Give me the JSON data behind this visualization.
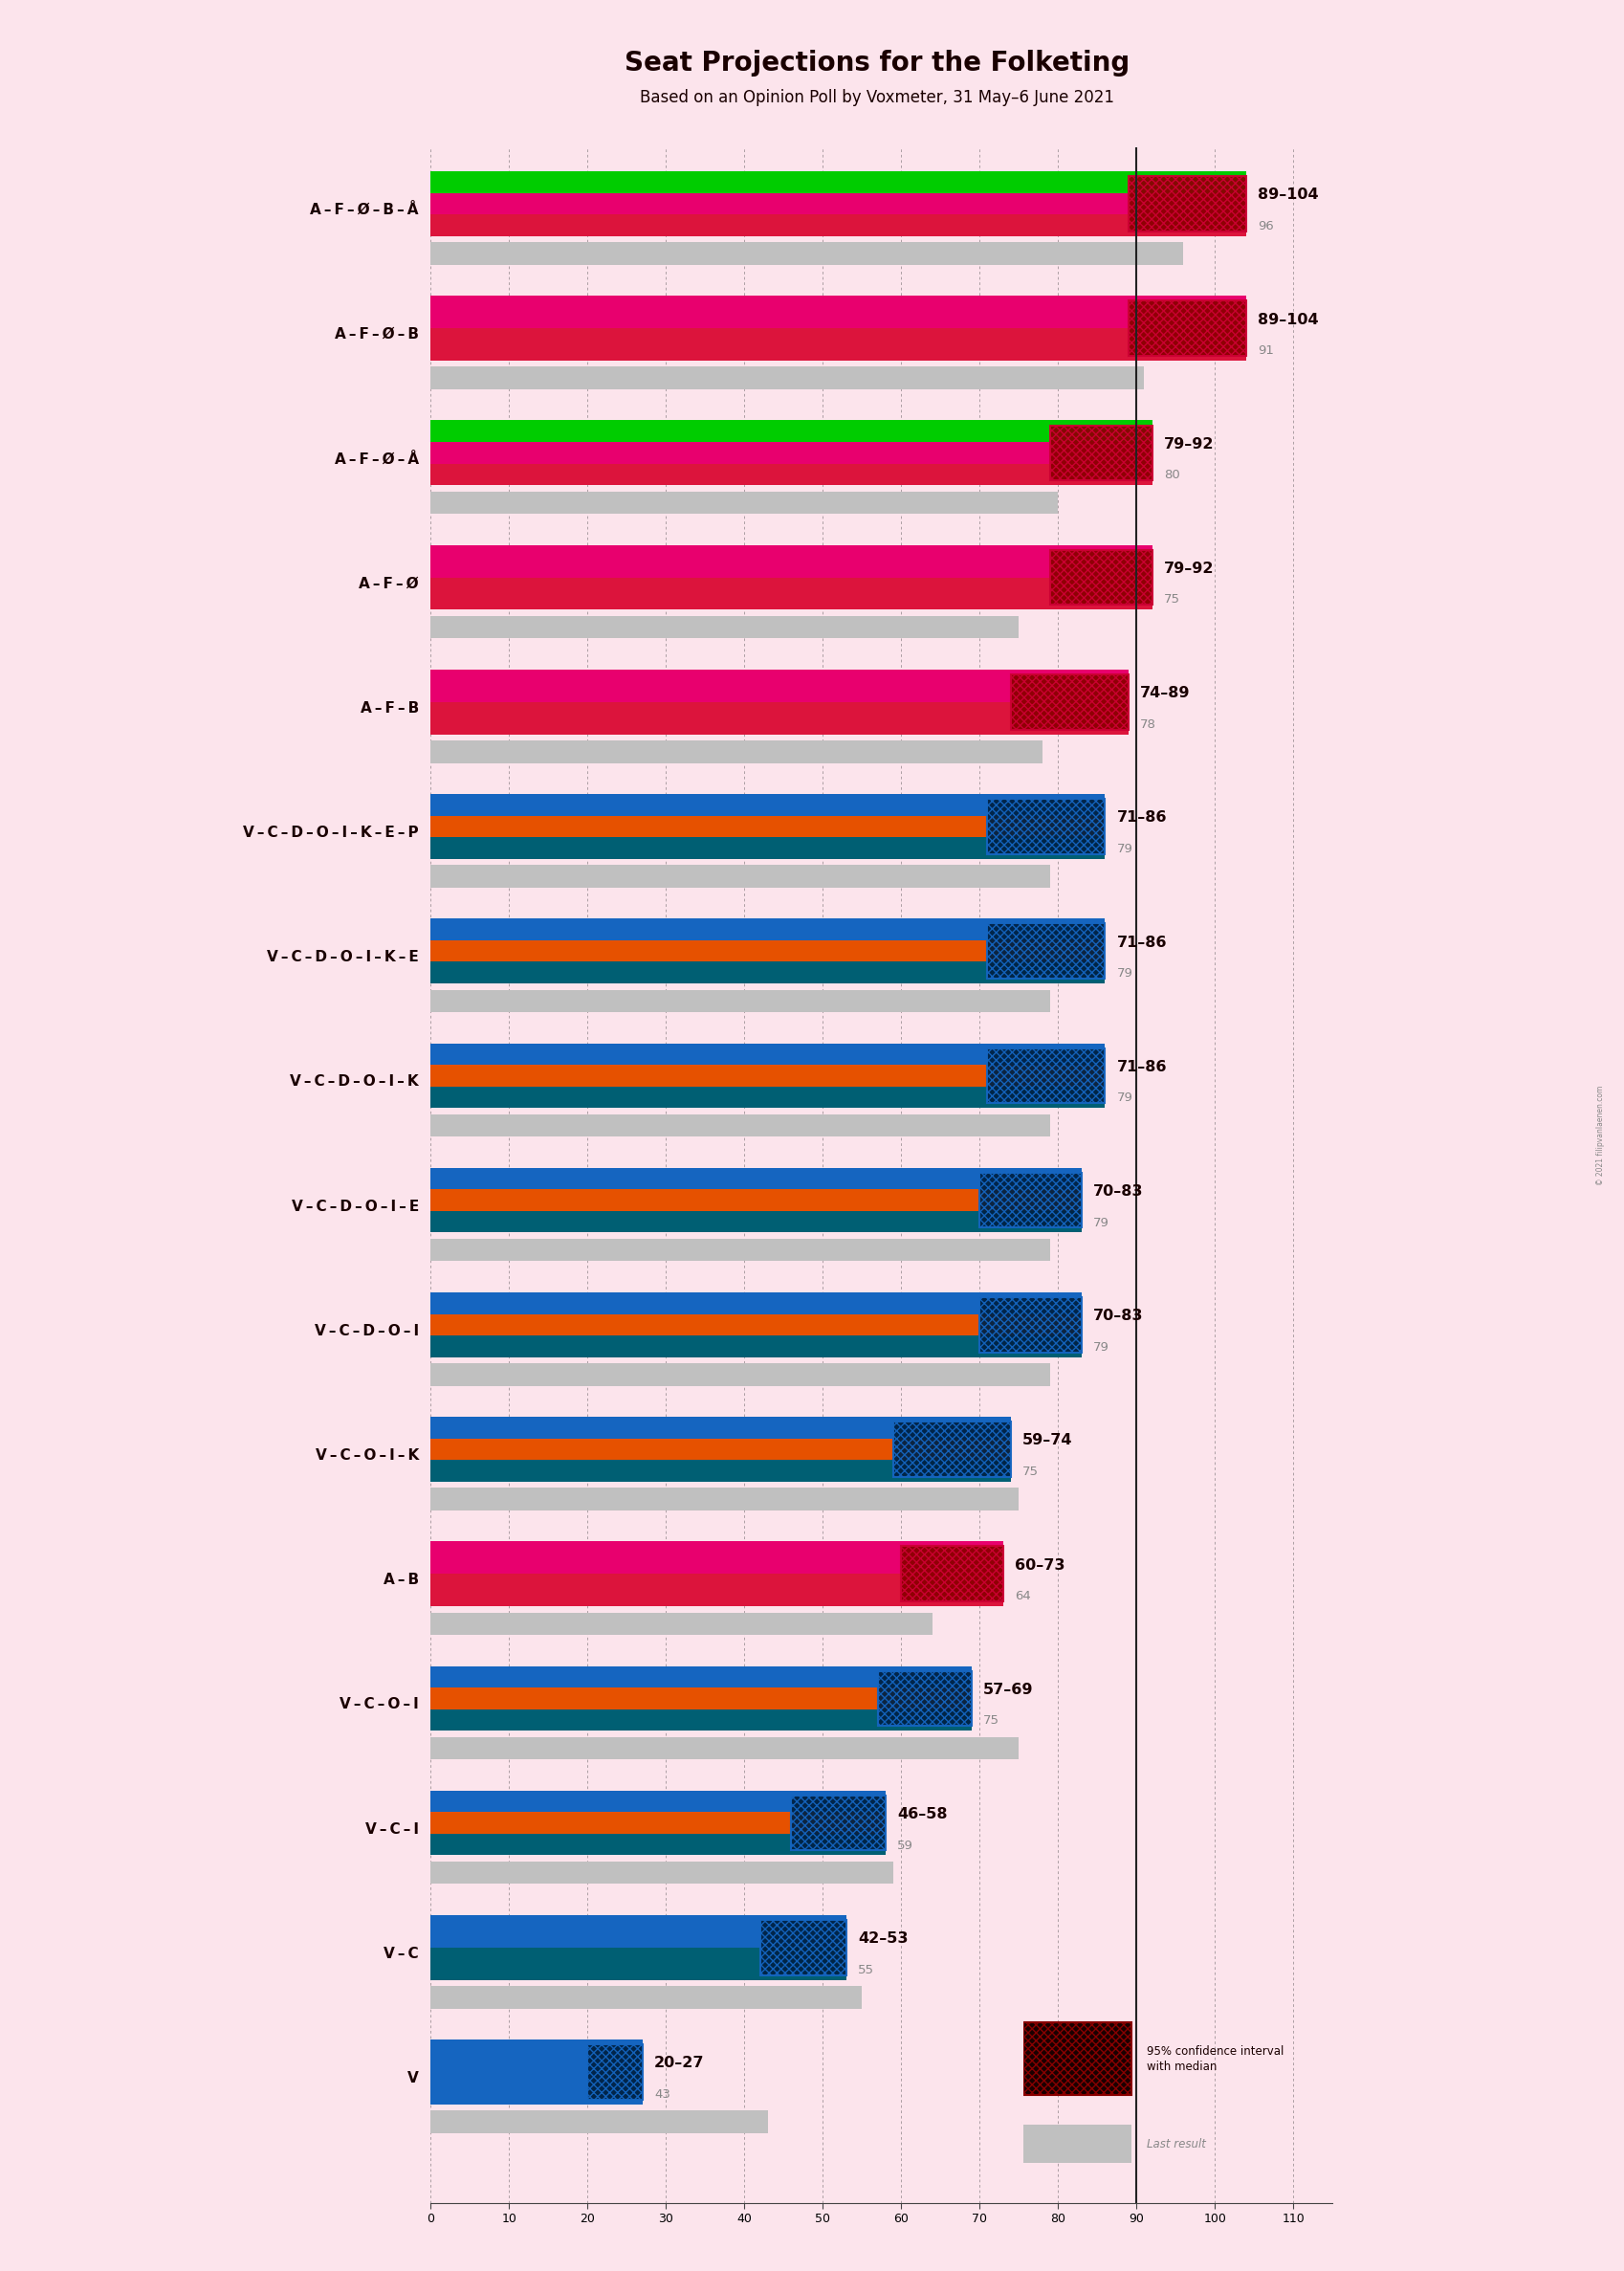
{
  "title": "Seat Projections for the Folketing",
  "subtitle_part1": "Based on an Opinion Poll by Voxmeter, 31 May",
  "subtitle_part2": "6 June 2021",
  "background_color": "#fce4ec",
  "copyright": "© 2021 filipvanlaenen.com",
  "coalitions": [
    {
      "label": "A – F – Ø – B – Å",
      "low": 89,
      "high": 104,
      "median": 96,
      "last": 96,
      "bar_colors": [
        "#dc143c",
        "#e8006e",
        "#00cc00"
      ],
      "ci_facecolor": "#8b0000",
      "ci_edgecolor": "#cc0033",
      "underline": false,
      "green_stripe": true
    },
    {
      "label": "A – F – Ø – B",
      "low": 89,
      "high": 104,
      "median": 91,
      "last": 91,
      "bar_colors": [
        "#dc143c",
        "#e8006e"
      ],
      "ci_facecolor": "#8b0000",
      "ci_edgecolor": "#cc0033",
      "underline": true,
      "green_stripe": false
    },
    {
      "label": "A – F – Ø – Å",
      "low": 79,
      "high": 92,
      "median": 80,
      "last": 80,
      "bar_colors": [
        "#dc143c",
        "#e8006e",
        "#00cc00"
      ],
      "ci_facecolor": "#8b0000",
      "ci_edgecolor": "#cc0033",
      "underline": false,
      "green_stripe": true
    },
    {
      "label": "A – F – Ø",
      "low": 79,
      "high": 92,
      "median": 75,
      "last": 75,
      "bar_colors": [
        "#dc143c",
        "#e8006e"
      ],
      "ci_facecolor": "#8b0000",
      "ci_edgecolor": "#cc0033",
      "underline": false,
      "green_stripe": false
    },
    {
      "label": "A – F – B",
      "low": 74,
      "high": 89,
      "median": 78,
      "last": 78,
      "bar_colors": [
        "#dc143c",
        "#e8006e"
      ],
      "ci_facecolor": "#8b0000",
      "ci_edgecolor": "#cc0033",
      "underline": false,
      "green_stripe": false
    },
    {
      "label": "V – C – D – O – I – K – E – P",
      "low": 71,
      "high": 86,
      "median": 79,
      "last": 79,
      "bar_colors": [
        "#005f73",
        "#e65100",
        "#1565c0"
      ],
      "ci_facecolor": "#002244",
      "ci_edgecolor": "#1565c0",
      "underline": false,
      "green_stripe": false
    },
    {
      "label": "V – C – D – O – I – K – E",
      "low": 71,
      "high": 86,
      "median": 79,
      "last": 79,
      "bar_colors": [
        "#005f73",
        "#e65100",
        "#1565c0"
      ],
      "ci_facecolor": "#002244",
      "ci_edgecolor": "#1565c0",
      "underline": false,
      "green_stripe": false
    },
    {
      "label": "V – C – D – O – I – K",
      "low": 71,
      "high": 86,
      "median": 79,
      "last": 79,
      "bar_colors": [
        "#005f73",
        "#e65100",
        "#1565c0"
      ],
      "ci_facecolor": "#002244",
      "ci_edgecolor": "#1565c0",
      "underline": false,
      "green_stripe": false
    },
    {
      "label": "V – C – D – O – I – E",
      "low": 70,
      "high": 83,
      "median": 79,
      "last": 79,
      "bar_colors": [
        "#005f73",
        "#e65100",
        "#1565c0"
      ],
      "ci_facecolor": "#002244",
      "ci_edgecolor": "#1565c0",
      "underline": false,
      "green_stripe": false
    },
    {
      "label": "V – C – D – O – I",
      "low": 70,
      "high": 83,
      "median": 79,
      "last": 79,
      "bar_colors": [
        "#005f73",
        "#e65100",
        "#1565c0"
      ],
      "ci_facecolor": "#002244",
      "ci_edgecolor": "#1565c0",
      "underline": false,
      "green_stripe": false
    },
    {
      "label": "V – C – O – I – K",
      "low": 59,
      "high": 74,
      "median": 75,
      "last": 75,
      "bar_colors": [
        "#005f73",
        "#e65100",
        "#1565c0"
      ],
      "ci_facecolor": "#002244",
      "ci_edgecolor": "#1565c0",
      "underline": false,
      "green_stripe": false
    },
    {
      "label": "A – B",
      "low": 60,
      "high": 73,
      "median": 64,
      "last": 64,
      "bar_colors": [
        "#dc143c",
        "#e8006e"
      ],
      "ci_facecolor": "#8b0000",
      "ci_edgecolor": "#cc0033",
      "underline": false,
      "green_stripe": false
    },
    {
      "label": "V – C – O – I",
      "low": 57,
      "high": 69,
      "median": 75,
      "last": 75,
      "bar_colors": [
        "#005f73",
        "#e65100",
        "#1565c0"
      ],
      "ci_facecolor": "#002244",
      "ci_edgecolor": "#1565c0",
      "underline": false,
      "green_stripe": false
    },
    {
      "label": "V – C – I",
      "low": 46,
      "high": 58,
      "median": 59,
      "last": 59,
      "bar_colors": [
        "#005f73",
        "#e65100",
        "#1565c0"
      ],
      "ci_facecolor": "#002244",
      "ci_edgecolor": "#1565c0",
      "underline": false,
      "green_stripe": false
    },
    {
      "label": "V – C",
      "low": 42,
      "high": 53,
      "median": 55,
      "last": 55,
      "bar_colors": [
        "#005f73",
        "#1565c0"
      ],
      "ci_facecolor": "#002244",
      "ci_edgecolor": "#1565c0",
      "underline": false,
      "green_stripe": false
    },
    {
      "label": "V",
      "low": 20,
      "high": 27,
      "median": 43,
      "last": 43,
      "bar_colors": [
        "#1565c0"
      ],
      "ci_facecolor": "#002244",
      "ci_edgecolor": "#1565c0",
      "underline": false,
      "green_stripe": false
    }
  ],
  "xmin": 0,
  "xmax": 115,
  "majority_line": 90,
  "grid_ticks": [
    0,
    10,
    20,
    30,
    40,
    50,
    60,
    70,
    80,
    90,
    100,
    110
  ]
}
